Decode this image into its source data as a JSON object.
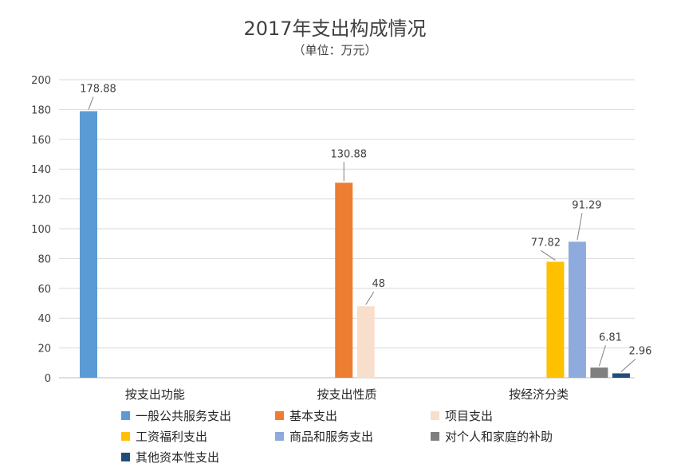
{
  "chart_data": {
    "type": "bar",
    "title": "2017年支出构成情况",
    "subtitle": "（单位：万元）",
    "xlabel": "",
    "ylabel": "",
    "ylim": [
      0,
      200
    ],
    "yticks": [
      0,
      20,
      40,
      60,
      80,
      100,
      120,
      140,
      160,
      180,
      200
    ],
    "grid": true,
    "legend_position": "bottom",
    "categories": [
      "按支出功能",
      "按支出性质",
      "按经济分类"
    ],
    "series": [
      {
        "name": "一般公共服务支出",
        "color": "#5b9bd5",
        "values": [
          178.88,
          null,
          null
        ],
        "labels": [
          "178.88",
          "",
          ""
        ]
      },
      {
        "name": "基本支出",
        "color": "#ed7d31",
        "values": [
          null,
          130.88,
          null
        ],
        "labels": [
          "",
          "130.88",
          ""
        ]
      },
      {
        "name": "项目支出",
        "color": "#f8dfcc",
        "values": [
          null,
          48,
          null
        ],
        "labels": [
          "",
          "48",
          ""
        ]
      },
      {
        "name": "工资福利支出",
        "color": "#ffc000",
        "values": [
          null,
          null,
          77.82
        ],
        "labels": [
          "",
          "",
          "77.82"
        ]
      },
      {
        "name": "商品和服务支出",
        "color": "#8faadc",
        "values": [
          null,
          null,
          91.29
        ],
        "labels": [
          "",
          "",
          "91.29"
        ]
      },
      {
        "name": "对个人和家庭的补助",
        "color": "#7f7f7f",
        "values": [
          null,
          null,
          6.81
        ],
        "labels": [
          "",
          "",
          "6.81"
        ]
      },
      {
        "name": "其他资本性支出",
        "color": "#1f4e79",
        "values": [
          null,
          null,
          2.96
        ],
        "labels": [
          "",
          "",
          "2.96"
        ]
      }
    ]
  }
}
